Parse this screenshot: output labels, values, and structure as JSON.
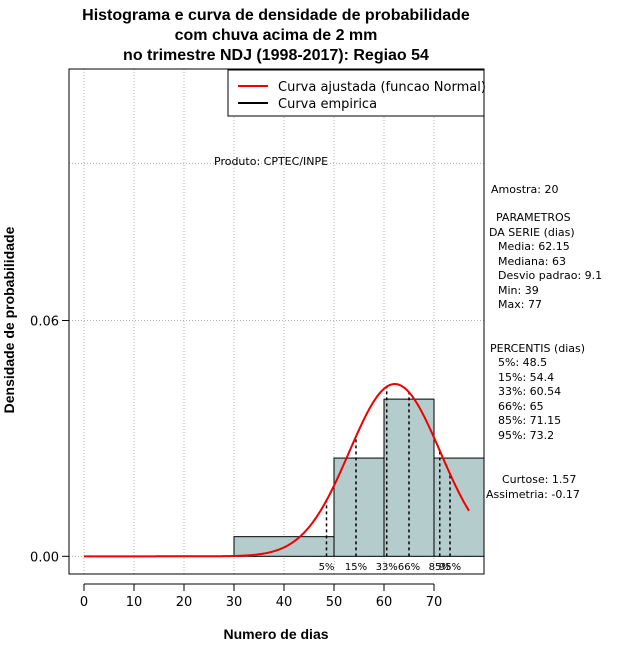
{
  "chart_data": {
    "type": "histogram",
    "title_lines": [
      "Histograma e curva de densidade de probabilidade",
      "com chuva acima de 2 mm",
      "no trimestre NDJ (1998-2017): Regiao 54"
    ],
    "xlabel": "Numero de dias",
    "ylabel": "Densidade de probabilidade",
    "xlim": [
      -3,
      80
    ],
    "ylim": [
      -0.0045,
      0.124
    ],
    "x_ticks": [
      0,
      10,
      20,
      30,
      40,
      50,
      60,
      70
    ],
    "x_tick_labels": [
      "0",
      "10",
      "20",
      "30",
      "40",
      "50",
      "60",
      "70"
    ],
    "y_ticks": [
      0.0,
      0.06
    ],
    "y_tick_labels": [
      "0.00",
      "0.06"
    ],
    "x_grid": [
      0,
      10,
      20,
      30,
      40,
      50,
      60,
      70,
      80
    ],
    "y_grid": [
      0.0,
      0.06,
      0.1
    ],
    "bins": [
      {
        "start": 30,
        "end": 50,
        "density": 0.005
      },
      {
        "start": 50,
        "end": 60,
        "density": 0.025
      },
      {
        "start": 60,
        "end": 70,
        "density": 0.04
      },
      {
        "start": 70,
        "end": 80,
        "density": 0.025
      }
    ],
    "bar_color": "#b4cccc",
    "normal_fit": {
      "mean": 62.15,
      "sd": 9.1,
      "x_start": 0,
      "x_end": 77,
      "color": "#ee0000"
    },
    "legend": {
      "position": "top-right",
      "entries": [
        {
          "label": "Curva ajustada (funcao Normal)",
          "color": "#ee0000"
        },
        {
          "label": "Curva empirica",
          "color": "#000000"
        }
      ]
    },
    "producer_label": "Produto: CPTEC/INPE",
    "percentile_lines": [
      {
        "label": "5%",
        "value": 48.5
      },
      {
        "label": "15%",
        "value": 54.4
      },
      {
        "label": "33%",
        "value": 60.54
      },
      {
        "label": "66%",
        "value": 65
      },
      {
        "label": "85%",
        "value": 71.15
      },
      {
        "label": "95%",
        "value": 73.2
      }
    ],
    "stats_text": [
      "Amostra: 20",
      "PARAMETROS",
      "DA SERIE (dias)",
      "Media: 62.15",
      "Mediana: 63",
      "Desvio padrao: 9.1",
      "Min: 39",
      "Max: 77",
      "PERCENTIS (dias)",
      "5%: 48.5",
      "15%: 54.4",
      "33%: 60.54",
      "66%: 65",
      "85%: 71.15",
      "95%: 73.2",
      "Curtose: 1.57",
      "Assimetria: -0.17"
    ]
  }
}
